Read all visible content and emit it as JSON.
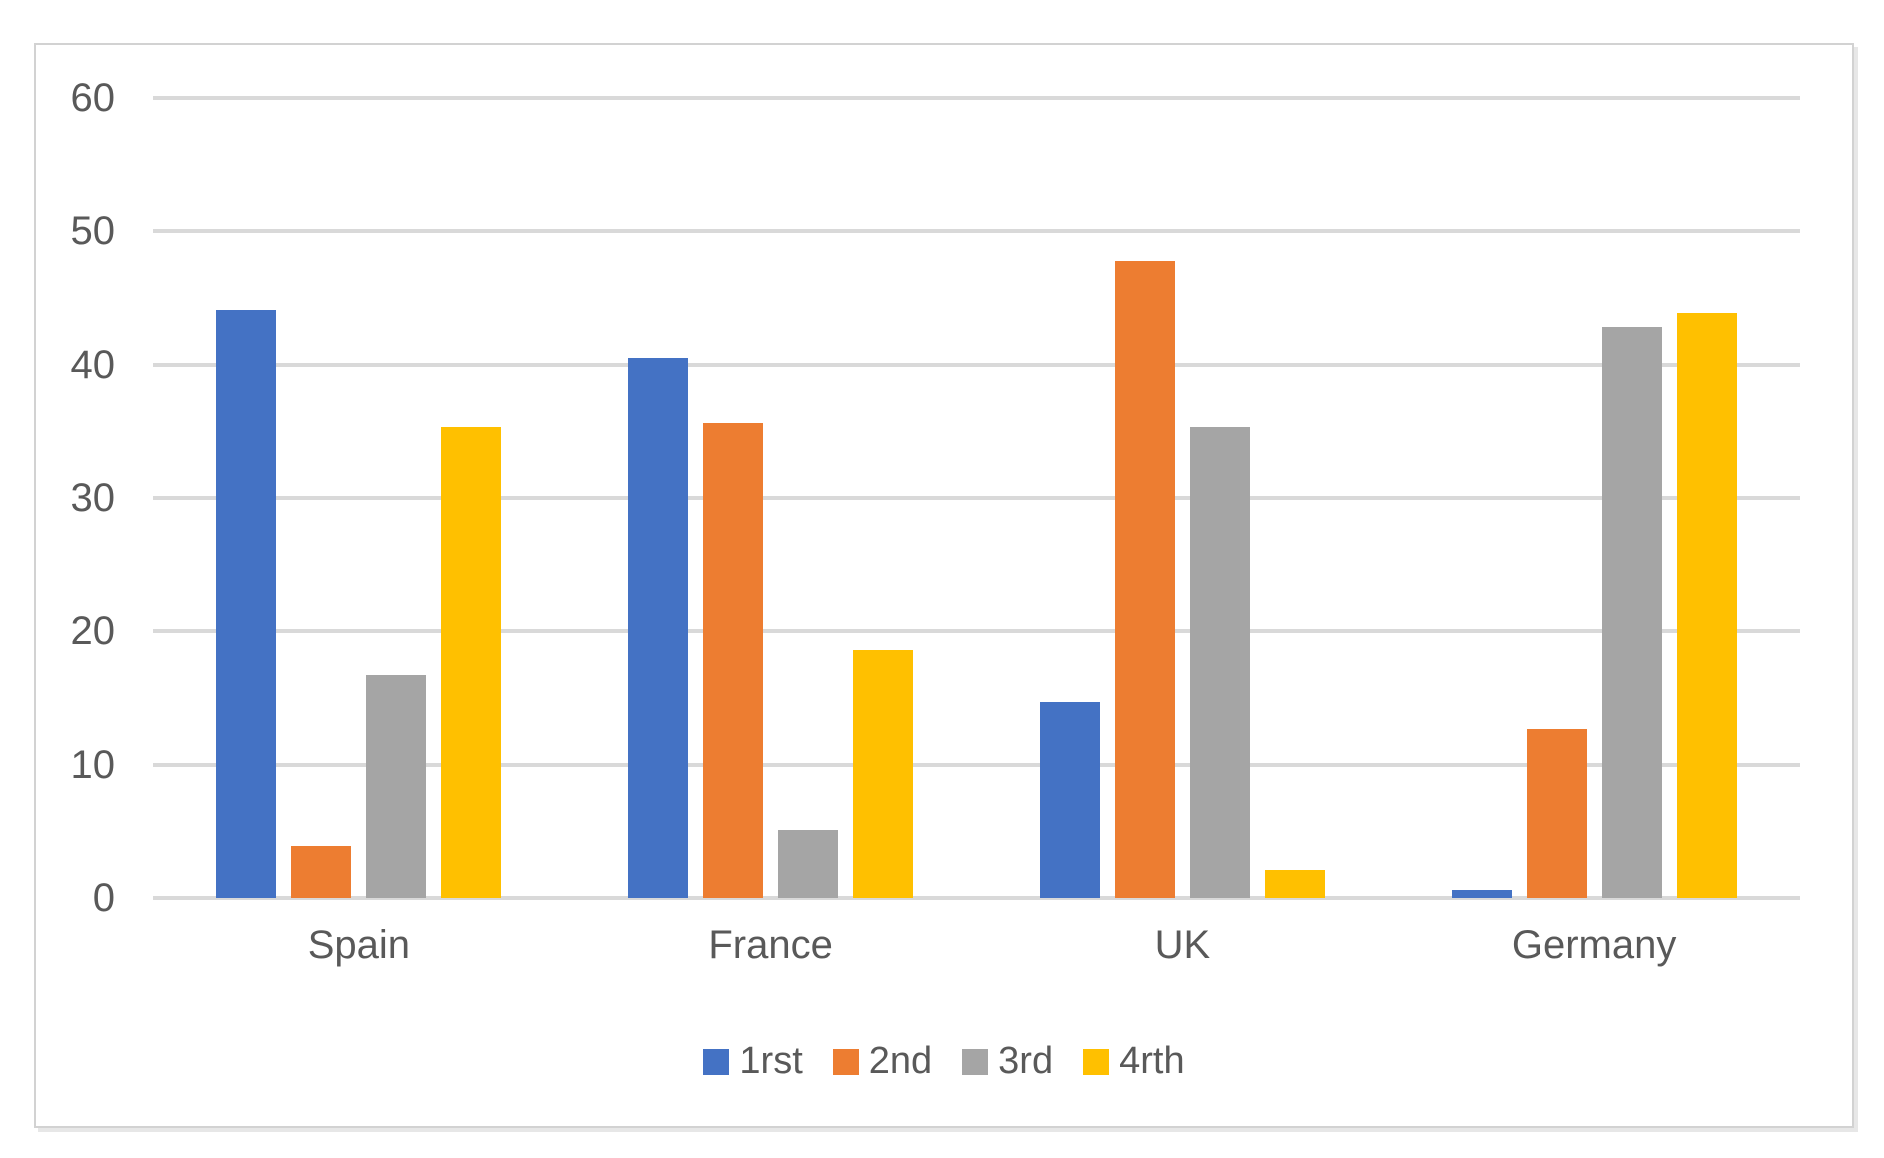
{
  "chart_data": {
    "type": "bar",
    "title": "",
    "xlabel": "",
    "ylabel": "",
    "categories": [
      "Spain",
      "France",
      "UK",
      "Germany"
    ],
    "series": [
      {
        "name": "1rst",
        "color": "#4472C4",
        "values": [
          44.1,
          40.5,
          14.7,
          0.6
        ]
      },
      {
        "name": "2nd",
        "color": "#ED7D31",
        "values": [
          3.9,
          35.6,
          47.8,
          12.7
        ]
      },
      {
        "name": "3rd",
        "color": "#A5A5A5",
        "values": [
          16.7,
          5.1,
          35.3,
          42.8
        ]
      },
      {
        "name": "4rth",
        "color": "#FFC000",
        "values": [
          35.3,
          18.6,
          2.1,
          43.9
        ]
      }
    ],
    "ylim": [
      0,
      60
    ],
    "yticks": [
      0,
      10,
      20,
      30,
      40,
      50,
      60
    ],
    "grid": true,
    "legend_position": "bottom"
  },
  "style": {
    "gridline_color": "#d9d9d9",
    "axis_text_color": "#595959",
    "frame_border_color": "#d2d2d2",
    "background_color": "#ffffff"
  }
}
